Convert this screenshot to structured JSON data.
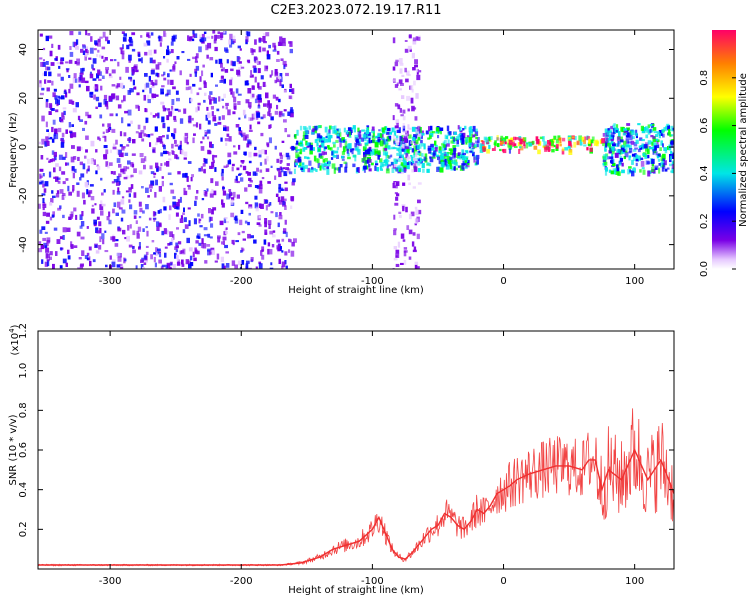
{
  "title": "C2E3.2023.072.19.17.R11",
  "chart_data": [
    {
      "type": "heatmap",
      "title": "C2E3.2023.072.19.17.R11",
      "xlabel": "Height of straight line (km)",
      "ylabel": "Frequency (Hz)",
      "xlim": [
        -355,
        130
      ],
      "ylim": [
        -50,
        48
      ],
      "xticks": [
        "-300",
        "-200",
        "-100",
        "0",
        "100"
      ],
      "yticks": [
        "-40",
        "-20",
        "0",
        "20",
        "40"
      ],
      "colorbar": {
        "label": "Normalized spectral amplitude",
        "range": [
          0,
          1
        ],
        "ticks": [
          "0.0",
          "0.2",
          "0.4",
          "0.6",
          "0.8"
        ]
      },
      "features": [
        {
          "x_range": [
            -355,
            -160
          ],
          "freq_range": [
            -50,
            48
          ],
          "amplitude": 0.1
        },
        {
          "x_range": [
            -160,
            -20
          ],
          "freq_center": 0,
          "freq_halfwidth": 9,
          "amplitude": 0.3
        },
        {
          "x_range": [
            -85,
            -65
          ],
          "freq_range": [
            -50,
            48
          ],
          "amplitude": 0.05
        },
        {
          "x_range": [
            -20,
            75
          ],
          "freq_center": 2,
          "freq_halfwidth": 3,
          "amplitude": 0.75
        },
        {
          "x_range": [
            75,
            130
          ],
          "freq_center": 0,
          "freq_halfwidth": 10,
          "amplitude": 0.3
        }
      ]
    },
    {
      "type": "line",
      "title": "",
      "xlabel": "Height of straight line (km)",
      "ylabel": "SNR (10 * v/v)",
      "yscale_label": "(x10",
      "yscale_exp": "4",
      "xlim": [
        -355,
        130
      ],
      "ylim": [
        0,
        1.2
      ],
      "xticks": [
        "-300",
        "-200",
        "-100",
        "0",
        "100"
      ],
      "yticks": [
        "0.2",
        "0.4",
        "0.6",
        "0.8",
        "1.0",
        "1.2"
      ],
      "color": "#f03030",
      "series": [
        {
          "name": "SNR",
          "x": [
            -355,
            -300,
            -250,
            -200,
            -170,
            -155,
            -140,
            -130,
            -120,
            -110,
            -100,
            -95,
            -90,
            -85,
            -80,
            -75,
            -70,
            -65,
            -60,
            -55,
            -50,
            -45,
            -40,
            -35,
            -30,
            -25,
            -20,
            -15,
            -10,
            -5,
            0,
            5,
            10,
            20,
            30,
            40,
            50,
            60,
            65,
            70,
            75,
            80,
            90,
            100,
            110,
            120,
            130
          ],
          "y": [
            0.02,
            0.02,
            0.02,
            0.02,
            0.02,
            0.03,
            0.06,
            0.1,
            0.12,
            0.14,
            0.2,
            0.26,
            0.18,
            0.1,
            0.06,
            0.05,
            0.08,
            0.12,
            0.16,
            0.2,
            0.22,
            0.28,
            0.26,
            0.22,
            0.2,
            0.24,
            0.3,
            0.28,
            0.32,
            0.38,
            0.4,
            0.42,
            0.45,
            0.48,
            0.5,
            0.52,
            0.52,
            0.5,
            0.55,
            0.55,
            0.4,
            0.5,
            0.45,
            0.6,
            0.45,
            0.55,
            0.38
          ]
        }
      ]
    }
  ]
}
